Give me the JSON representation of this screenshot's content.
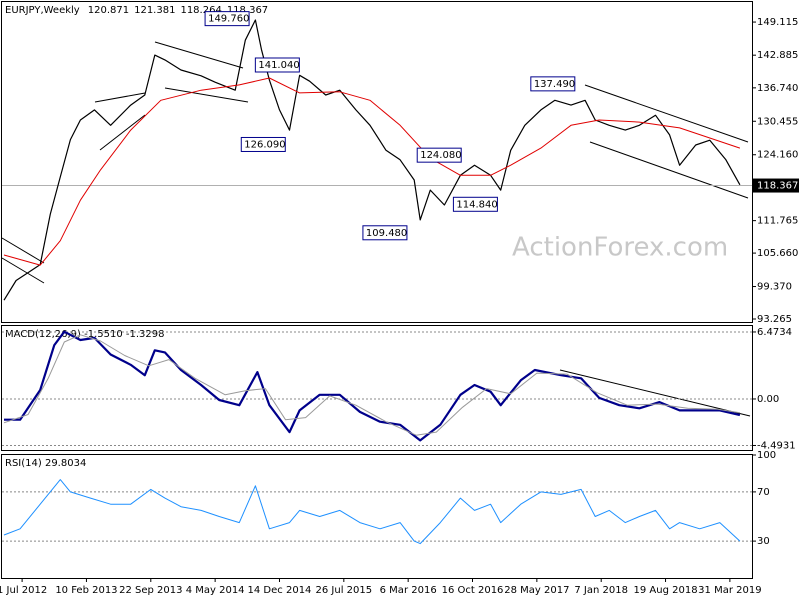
{
  "chart_data": [
    {
      "type": "line",
      "title": "EURJPY,Weekly",
      "header_values": [
        120.871,
        121.381,
        118.264,
        118.367
      ],
      "watermark": "ActionForex.com",
      "last_value": 118.367,
      "ylim": [
        92.7,
        152.7
      ],
      "yticks": [
        149.115,
        142.885,
        {
          "value": 136.74,
          "label": "136.740"
        },
        130.455,
        {
          "value": 124.16,
          "label": "124.160"
        },
        111.765,
        {
          "value": 105.66,
          "label": "105.660"
        },
        {
          "value": 99.37,
          "label": "99.370"
        },
        93.265
      ],
      "series": [
        {
          "color": "#000000",
          "width": 1.2,
          "x": [
            0,
            6,
            12,
            18,
            23,
            28,
            33,
            38,
            45,
            53,
            63,
            70,
            75,
            80,
            88,
            98,
            105,
            115,
            120,
            125,
            128,
            132,
            137,
            142,
            147,
            152,
            160,
            167,
            175,
            182,
            190,
            197,
            204,
            207,
            212,
            219,
            227,
            234,
            242,
            247,
            252,
            259,
            267,
            274,
            282,
            289,
            294,
            301,
            309,
            316,
            324,
            331,
            336,
            344,
            351,
            359,
            366
          ],
          "values": [
            96.8,
            100.5,
            102.0,
            103.5,
            113.0,
            120.0,
            127.0,
            130.7,
            132.6,
            129.7,
            133.5,
            135.4,
            142.9,
            142.0,
            140.1,
            139.0,
            137.8,
            136.3,
            145.7,
            149.5,
            144.0,
            138.2,
            132.6,
            128.8,
            139.1,
            138.0,
            135.4,
            136.3,
            132.6,
            129.7,
            125.0,
            123.2,
            119.4,
            111.9,
            117.5,
            114.7,
            120.3,
            122.2,
            120.3,
            117.5,
            125.0,
            129.7,
            132.6,
            134.4,
            133.5,
            134.4,
            130.7,
            129.7,
            128.8,
            129.7,
            131.6,
            127.9,
            122.2,
            126.0,
            126.9,
            123.2,
            118.5
          ]
        },
        {
          "color": "#e00000",
          "width": 1,
          "x": [
            0,
            18,
            28,
            38,
            48,
            63,
            78,
            98,
            117,
            132,
            147,
            167,
            182,
            197,
            212,
            227,
            242,
            252,
            267,
            282,
            296,
            316,
            336,
            351,
            366
          ],
          "values": [
            105.3,
            103.4,
            108.0,
            115.6,
            121.3,
            128.8,
            134.4,
            136.3,
            137.3,
            138.6,
            135.8,
            136.0,
            134.4,
            129.7,
            123.5,
            120.3,
            120.3,
            122.2,
            125.4,
            129.7,
            130.7,
            130.3,
            129.2,
            127.3,
            125.4
          ]
        }
      ],
      "annotations": [
        {
          "x": 100,
          "y": 149.76,
          "label": "149.760"
        },
        {
          "x": 125,
          "y": 141.04,
          "label": "141.040"
        },
        {
          "x": 118,
          "y": 126.09,
          "label": "126.090"
        },
        {
          "x": 205.5,
          "y": 124.08,
          "label": "124.080"
        },
        {
          "x": 178.5,
          "y": 109.48,
          "label": "109.480"
        },
        {
          "x": 223.5,
          "y": 114.84,
          "label": "114.840"
        },
        {
          "x": 262,
          "y": 137.49,
          "label": "137.490"
        }
      ]
    },
    {
      "type": "line",
      "title": "MACD(12,26,9) -1.5510 -1.3298",
      "ylim": [
        -4.93,
        7.05
      ],
      "yticks": [
        6.4734,
        {
          "value": 0,
          "label": "0.00"
        },
        -4.4931
      ],
      "series": [
        {
          "color": "#00008b",
          "width": 2.2,
          "x": [
            0,
            8,
            18,
            25,
            30,
            38,
            45,
            53,
            63,
            70,
            75,
            80,
            88,
            98,
            107,
            117,
            126,
            132,
            142,
            147,
            157,
            167,
            177,
            187,
            197,
            207,
            217,
            227,
            234,
            242,
            247,
            257,
            264,
            277,
            287,
            296,
            306,
            316,
            326,
            336,
            346,
            356,
            366
          ],
          "values": [
            -2.0,
            -2.0,
            0.87,
            5.2,
            6.5,
            5.7,
            5.9,
            4.3,
            3.3,
            2.3,
            4.7,
            4.5,
            2.8,
            1.35,
            -0.1,
            -0.6,
            2.6,
            -0.6,
            -3.2,
            -1.1,
            0.4,
            0.4,
            -1.25,
            -2.2,
            -2.5,
            -4.0,
            -2.5,
            0.4,
            1.35,
            0.7,
            -0.6,
            1.8,
            2.8,
            2.3,
            2.0,
            0.1,
            -0.6,
            -0.9,
            -0.3,
            -1.1,
            -1.1,
            -1.1,
            -1.55
          ]
        },
        {
          "color": "#9a9a9a",
          "width": 1,
          "x": [
            0,
            12,
            22,
            30,
            38,
            48,
            60,
            72,
            82,
            95,
            110,
            120,
            130,
            140,
            150,
            162,
            175,
            190,
            205,
            215,
            228,
            240,
            252,
            265,
            280,
            295,
            310,
            325,
            340,
            355,
            366
          ],
          "values": [
            -2.3,
            -1.5,
            2.0,
            5.5,
            6.2,
            5.6,
            4.2,
            3.2,
            3.8,
            2.0,
            0.4,
            0.8,
            1.0,
            -2.0,
            -1.8,
            0.3,
            -0.6,
            -2.2,
            -3.5,
            -3.2,
            -0.8,
            1.0,
            0.5,
            2.5,
            2.4,
            0.6,
            -0.6,
            -0.5,
            -0.9,
            -1.0,
            -1.33
          ]
        }
      ]
    },
    {
      "type": "line",
      "title": "RSI(14) 29.8034",
      "ylim": [
        0,
        100
      ],
      "yticks": [
        100,
        70,
        30
      ],
      "xlim": [
        -1,
        372
      ],
      "xticks": [
        {
          "value": 9,
          "label": "1 Jul 2012"
        },
        {
          "value": 41,
          "label": "10 Feb 2013"
        },
        {
          "value": 73,
          "label": "22 Sep 2013"
        },
        {
          "value": 105,
          "label": "4 May 2014"
        },
        {
          "value": 137,
          "label": "14 Dec 2014"
        },
        {
          "value": 169,
          "label": "26 Jul 2015"
        },
        {
          "value": 201,
          "label": "6 Mar 2016"
        },
        {
          "value": 233,
          "label": "16 Oct 2016"
        },
        {
          "value": 265,
          "label": "28 May 2017"
        },
        {
          "value": 297,
          "label": "7 Jan 2018"
        },
        {
          "value": 329,
          "label": "19 Aug 2018"
        },
        {
          "value": 361,
          "label": "31 Mar 2019"
        }
      ],
      "series": [
        {
          "color": "#1e90ff",
          "width": 1,
          "x": [
            0,
            8,
            18,
            28,
            33,
            43,
            53,
            63,
            73,
            80,
            88,
            98,
            107,
            117,
            125,
            132,
            142,
            147,
            157,
            167,
            177,
            187,
            197,
            204,
            207,
            217,
            227,
            234,
            242,
            247,
            257,
            267,
            277,
            287,
            294,
            301,
            309,
            316,
            324,
            331,
            336,
            346,
            356,
            366
          ],
          "values": [
            35,
            40,
            60,
            80,
            70,
            65,
            60,
            60,
            72,
            65,
            58,
            55,
            50,
            45,
            75,
            40,
            45,
            55,
            50,
            55,
            45,
            40,
            45,
            30,
            28,
            45,
            65,
            55,
            60,
            45,
            60,
            70,
            68,
            72,
            50,
            55,
            45,
            50,
            55,
            40,
            45,
            40,
            45,
            30
          ]
        }
      ]
    }
  ]
}
